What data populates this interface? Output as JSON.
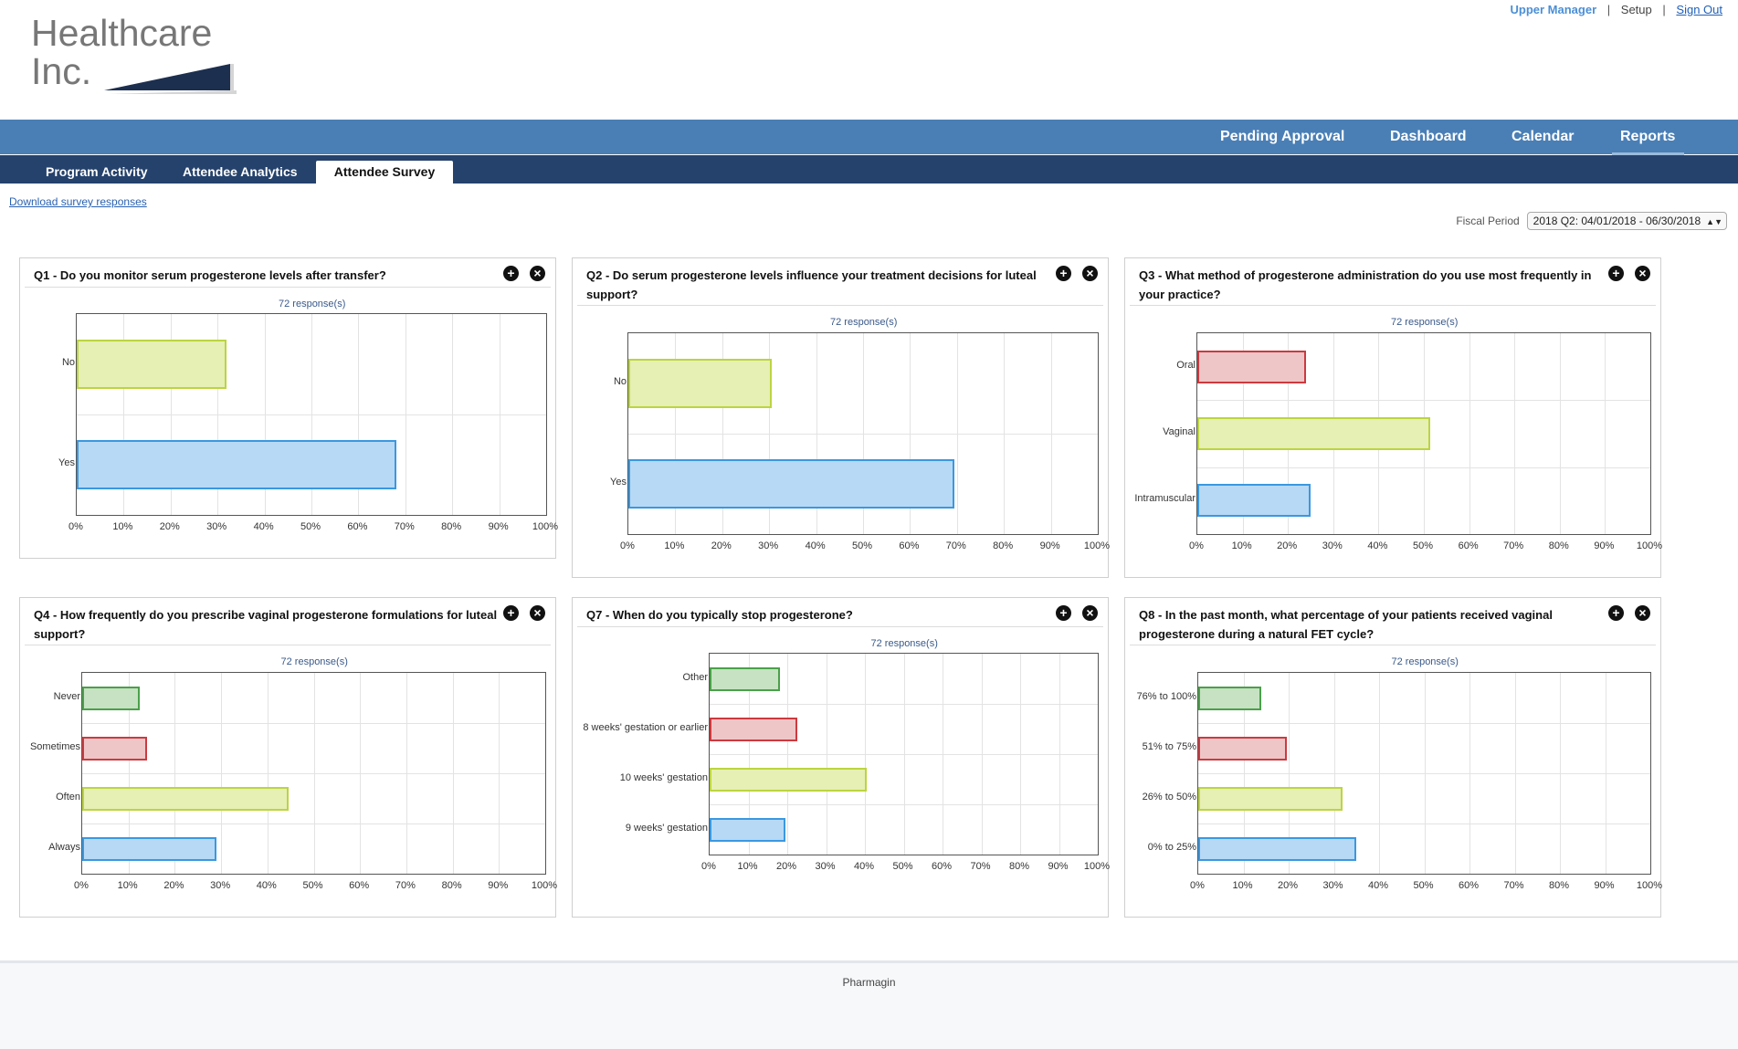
{
  "brand": {
    "line1": "Healthcare",
    "line2": "Inc."
  },
  "util_links": {
    "user": "Upper Manager",
    "setup": "Setup",
    "sign_out": "Sign Out",
    "separator": "|"
  },
  "main_nav": [
    "Pending Approval",
    "Dashboard",
    "Calendar",
    "Reports"
  ],
  "sub_nav": [
    "Program Activity",
    "Attendee Analytics",
    "Attendee Survey"
  ],
  "download_link": "Download survey responses",
  "fiscal": {
    "label": "Fiscal Period",
    "value": "2018 Q2:  04/01/2018 - 06/30/2018"
  },
  "colors": {
    "blue": "#b7d9f5",
    "blue_border": "#3a98e0",
    "yellow": "#e6efb4",
    "yellow_border": "#bcd440",
    "red": "#efc6c8",
    "red_border": "#cc3a3f",
    "green": "#c6e2c2",
    "green_border": "#4aa04a"
  },
  "x_ticks": [
    "0%",
    "10%",
    "20%",
    "30%",
    "40%",
    "50%",
    "60%",
    "70%",
    "80%",
    "90%",
    "100%"
  ],
  "chart_data": [
    {
      "id": "q1",
      "type": "bar",
      "orientation": "horizontal",
      "title": "Q1 - Do you monitor serum progesterone levels after transfer?",
      "responses": "72 response(s)",
      "xlim": [
        0,
        100
      ],
      "categories": [
        "No",
        "Yes"
      ],
      "values": [
        32,
        68
      ],
      "colors": [
        "yellow",
        "blue"
      ]
    },
    {
      "id": "q2",
      "type": "bar",
      "orientation": "horizontal",
      "title": "Q2 - Do serum progesterone levels influence your treatment decisions for luteal support?",
      "responses": "72 response(s)",
      "xlim": [
        0,
        100
      ],
      "categories": [
        "No",
        "Yes"
      ],
      "values": [
        30.5,
        69.5
      ],
      "colors": [
        "yellow",
        "blue"
      ]
    },
    {
      "id": "q3",
      "type": "bar",
      "orientation": "horizontal",
      "title": "Q3 - What method of progesterone administration do you use most frequently in your practice?",
      "responses": "72 response(s)",
      "xlim": [
        0,
        100
      ],
      "categories": [
        "Oral",
        "Vaginal",
        "Intramuscular"
      ],
      "values": [
        24,
        51.5,
        25
      ],
      "colors": [
        "red",
        "yellow",
        "blue"
      ]
    },
    {
      "id": "q4",
      "type": "bar",
      "orientation": "horizontal",
      "title": "Q4 - How frequently do you prescribe vaginal progesterone formulations for luteal support?",
      "responses": "72 response(s)",
      "xlim": [
        0,
        100
      ],
      "categories": [
        "Never",
        "Sometimes",
        "Often",
        "Always"
      ],
      "values": [
        12.5,
        14,
        44.5,
        29
      ],
      "colors": [
        "green",
        "red",
        "yellow",
        "blue"
      ]
    },
    {
      "id": "q7",
      "type": "bar",
      "orientation": "horizontal",
      "title": "Q7 - When do you typically stop progesterone?",
      "responses": "72 response(s)",
      "xlim": [
        0,
        100
      ],
      "categories": [
        "Other",
        "8 weeks' gestation or earlier",
        "10 weeks' gestation",
        "9 weeks' gestation"
      ],
      "values": [
        18,
        22.5,
        40.5,
        19.5
      ],
      "colors": [
        "green",
        "red",
        "yellow",
        "blue"
      ]
    },
    {
      "id": "q8",
      "type": "bar",
      "orientation": "horizontal",
      "title": "Q8 - In the past month, what percentage of your patients received vaginal progesterone during a natural FET cycle?",
      "responses": "72 response(s)",
      "xlim": [
        0,
        100
      ],
      "categories": [
        "76% to 100%",
        "51% to 75%",
        "26% to 50%",
        "0% to 25%"
      ],
      "values": [
        14,
        19.5,
        32,
        35
      ],
      "colors": [
        "green",
        "red",
        "yellow",
        "blue"
      ]
    }
  ],
  "panel_icons": {
    "add": "plus-circle-icon",
    "close": "close-circle-icon"
  },
  "footer": "Pharmagin"
}
